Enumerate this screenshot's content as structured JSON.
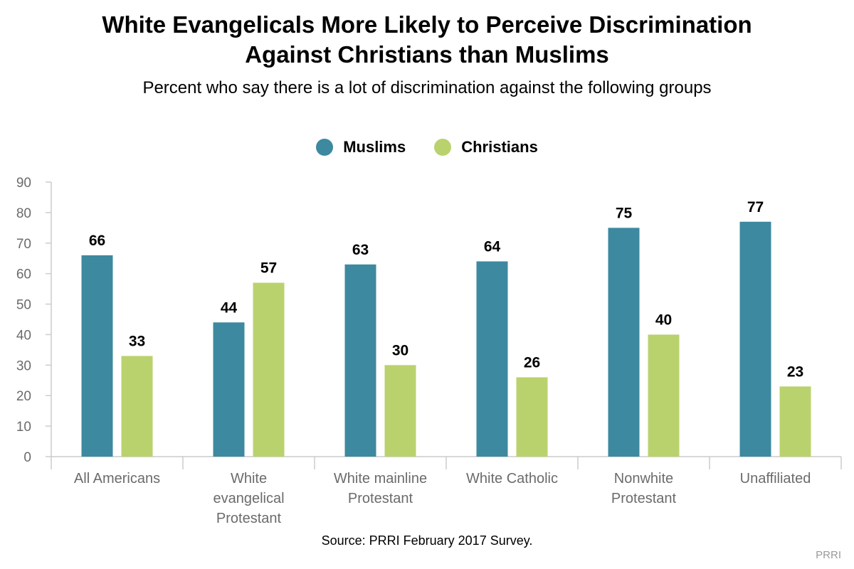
{
  "title": "White Evangelicals More Likely to Perceive Discrimination\nAgainst Christians than Muslims",
  "subtitle": "Percent who say there is a lot of discrimination against the following groups",
  "source": "Source: PRRI February 2017 Survey.",
  "brand": "PRRI",
  "colors": {
    "muslims": "#3d899f",
    "christians": "#bad26d",
    "axis": "#cccccc",
    "tick_text": "#6b6b6b"
  },
  "chart_data": {
    "type": "bar",
    "categories": [
      [
        "All Americans"
      ],
      [
        "White",
        "evangelical",
        "Protestant"
      ],
      [
        "White mainline",
        "Protestant"
      ],
      [
        "White Catholic"
      ],
      [
        "Nonwhite",
        "Protestant"
      ],
      [
        "Unaffiliated"
      ]
    ],
    "series": [
      {
        "name": "Muslims",
        "values": [
          66,
          44,
          63,
          64,
          75,
          77
        ]
      },
      {
        "name": "Christians",
        "values": [
          33,
          57,
          30,
          26,
          40,
          23
        ]
      }
    ],
    "ylim": [
      0,
      90
    ],
    "yticks": [
      0,
      10,
      20,
      30,
      40,
      50,
      60,
      70,
      80,
      90
    ],
    "legend": "top-center",
    "grid": false
  }
}
